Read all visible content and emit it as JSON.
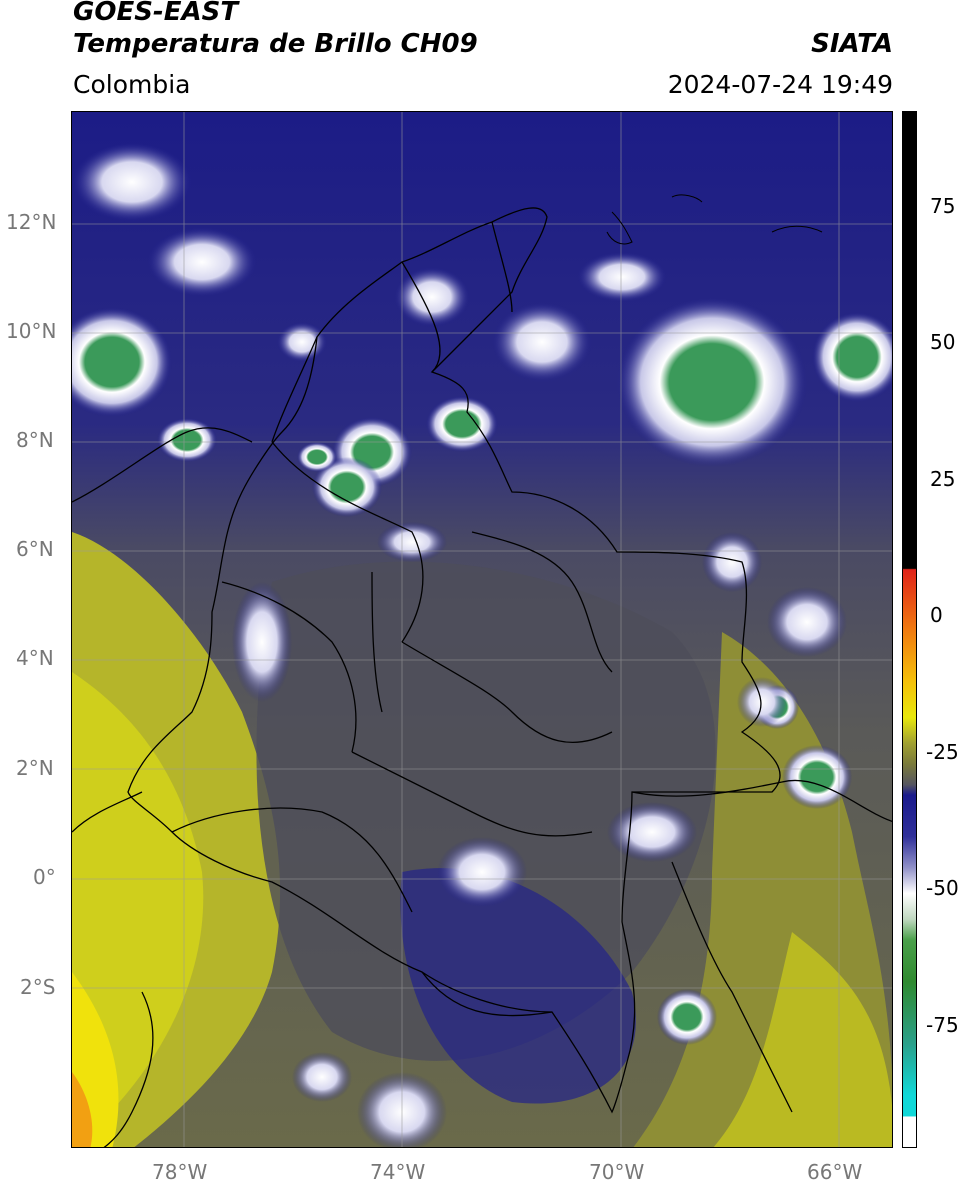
{
  "header": {
    "satellite": "GOES-EAST",
    "product": "Temperatura de Brillo CH09",
    "brand": "SIATA",
    "region": "Colombia",
    "datetime": "2024-07-24 19:49"
  },
  "map": {
    "lat_ticks": [
      "12°N",
      "10°N",
      "8°N",
      "6°N",
      "4°N",
      "2°N",
      "0°",
      "2°S"
    ],
    "lon_ticks": [
      "78°W",
      "74°W",
      "70°W",
      "66°W"
    ],
    "lat_range": [
      -4.6,
      14.2
    ],
    "lon_range": [
      -80,
      -65
    ]
  },
  "colorbar": {
    "ticks": [
      "75",
      "50",
      "25",
      "0",
      "-25",
      "-50",
      "-75"
    ],
    "colors": {
      "black": "#000000",
      "red": "#e0231a",
      "orange": "#f59a0a",
      "yellow": "#e8e80c",
      "olive": "#7a7a3a",
      "gray": "#555560",
      "navy": "#1a1a8c",
      "white": "#ffffff",
      "green": "#2f8a2f",
      "cyan": "#10d8d8"
    }
  }
}
